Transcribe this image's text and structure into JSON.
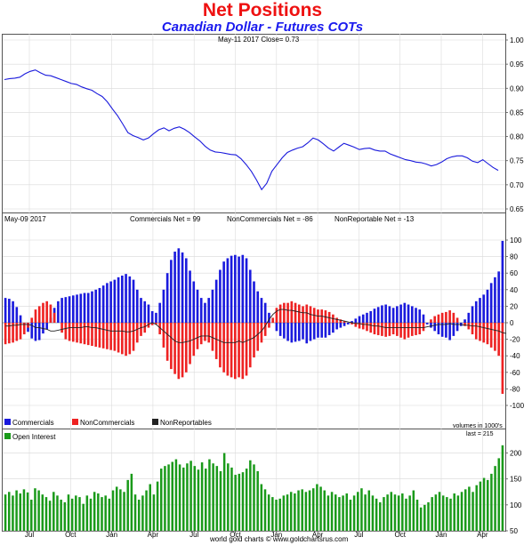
{
  "header": {
    "title": "Net Positions",
    "subtitle": "Canadian Dollar - Futures COTs"
  },
  "footer": {
    "credit": "world gold charts © www.goldchartsrus.com"
  },
  "chart_data": [
    {
      "type": "line",
      "panel": "price",
      "info": "May-11  2017  Close= 0.73",
      "ylim": [
        0.65,
        1.0
      ],
      "yticks": [
        0.65,
        0.7,
        0.75,
        0.8,
        0.85,
        0.9,
        0.95,
        1.0
      ],
      "ytick_labels": [
        "0.65",
        "0.70",
        "0.75",
        "0.80",
        "0.85",
        "0.90",
        "0.95",
        "1.00"
      ],
      "color": "#1a1adc",
      "values": [
        0.918,
        0.92,
        0.921,
        0.923,
        0.93,
        0.935,
        0.938,
        0.932,
        0.927,
        0.926,
        0.922,
        0.918,
        0.914,
        0.91,
        0.908,
        0.903,
        0.899,
        0.896,
        0.889,
        0.883,
        0.872,
        0.857,
        0.843,
        0.826,
        0.808,
        0.802,
        0.798,
        0.793,
        0.797,
        0.806,
        0.814,
        0.818,
        0.812,
        0.817,
        0.82,
        0.815,
        0.808,
        0.799,
        0.791,
        0.78,
        0.772,
        0.768,
        0.767,
        0.765,
        0.763,
        0.762,
        0.754,
        0.742,
        0.728,
        0.71,
        0.69,
        0.703,
        0.728,
        0.742,
        0.756,
        0.767,
        0.772,
        0.776,
        0.779,
        0.787,
        0.797,
        0.793,
        0.785,
        0.776,
        0.77,
        0.778,
        0.786,
        0.782,
        0.778,
        0.773,
        0.775,
        0.776,
        0.772,
        0.77,
        0.77,
        0.764,
        0.76,
        0.756,
        0.752,
        0.75,
        0.747,
        0.746,
        0.743,
        0.739,
        0.742,
        0.747,
        0.754,
        0.758,
        0.76,
        0.76,
        0.756,
        0.749,
        0.746,
        0.752,
        0.744,
        0.736,
        0.73
      ]
    },
    {
      "type": "bar",
      "panel": "net_positions",
      "info_date": "May-09  2017",
      "info_labels": [
        "Commercials Net = 99",
        "NonCommercials Net = -86",
        "NonReportable Net = -13"
      ],
      "ylim": [
        -100,
        100
      ],
      "yticks": [
        -100,
        -80,
        -60,
        -40,
        -20,
        0,
        20,
        40,
        60,
        80,
        100
      ],
      "ytick_labels": [
        "-100",
        "-80",
        "-60",
        "-40",
        "-20",
        "0",
        "20",
        "40",
        "60",
        "80",
        "100"
      ],
      "unit_note": "volumes in 1000's",
      "legend": [
        "Commercials",
        "NonCommercials",
        "NonReportables"
      ],
      "colors": {
        "commercials": "#1a1add",
        "noncommercials": "#ee2222",
        "nonreportables": "#222222"
      },
      "series": [
        {
          "name": "Commercials",
          "values": [
            30,
            29,
            26,
            19,
            9,
            -2,
            -11,
            -19,
            -22,
            -21,
            -13,
            -8,
            6,
            18,
            26,
            30,
            31,
            32,
            33,
            34,
            35,
            36,
            36,
            38,
            40,
            42,
            45,
            48,
            50,
            52,
            55,
            57,
            59,
            56,
            52,
            40,
            30,
            26,
            22,
            14,
            12,
            24,
            40,
            60,
            76,
            86,
            90,
            85,
            78,
            63,
            50,
            40,
            30,
            24,
            30,
            40,
            52,
            64,
            74,
            78,
            81,
            82,
            80,
            82,
            78,
            64,
            50,
            38,
            30,
            24,
            12,
            0,
            -10,
            -16,
            -19,
            -22,
            -24,
            -23,
            -22,
            -20,
            -25,
            -22,
            -20,
            -18,
            -18,
            -18,
            -15,
            -12,
            -8,
            -6,
            -4,
            -2,
            2,
            5,
            8,
            10,
            12,
            14,
            17,
            19,
            21,
            22,
            20,
            18,
            20,
            22,
            24,
            22,
            20,
            18,
            16,
            10,
            -2,
            -6,
            -10,
            -14,
            -17,
            -18,
            -21,
            -16,
            -10,
            -4,
            4,
            12,
            20,
            26,
            30,
            34,
            40,
            48,
            55,
            62,
            99
          ]
        },
        {
          "name": "NonCommercials",
          "values": [
            -26,
            -25,
            -24,
            -22,
            -20,
            -14,
            -6,
            6,
            16,
            20,
            24,
            26,
            22,
            12,
            0,
            -12,
            -20,
            -22,
            -23,
            -24,
            -25,
            -26,
            -27,
            -28,
            -29,
            -30,
            -31,
            -32,
            -33,
            -34,
            -36,
            -38,
            -40,
            -38,
            -34,
            -24,
            -16,
            -12,
            -6,
            -3,
            -2,
            -14,
            -30,
            -46,
            -56,
            -62,
            -68,
            -66,
            -60,
            -50,
            -40,
            -32,
            -26,
            -22,
            -24,
            -34,
            -44,
            -54,
            -60,
            -64,
            -66,
            -68,
            -66,
            -68,
            -64,
            -54,
            -42,
            -34,
            -24,
            -16,
            -6,
            6,
            18,
            22,
            24,
            24,
            26,
            24,
            22,
            20,
            22,
            20,
            18,
            16,
            16,
            15,
            13,
            10,
            6,
            4,
            2,
            0,
            -2,
            -5,
            -7,
            -8,
            -10,
            -12,
            -14,
            -15,
            -16,
            -17,
            -16,
            -14,
            -16,
            -18,
            -20,
            -18,
            -16,
            -15,
            -14,
            -10,
            0,
            4,
            8,
            10,
            12,
            13,
            15,
            12,
            6,
            0,
            -4,
            -8,
            -14,
            -20,
            -22,
            -24,
            -26,
            -30,
            -34,
            -40,
            -86
          ]
        },
        {
          "name": "NonReportables",
          "values": [
            -4,
            -4,
            -3,
            -3,
            -2,
            -2,
            -2,
            -3,
            -6,
            -6,
            -7,
            -8,
            -10,
            -10,
            -9,
            -8,
            -7,
            -6,
            -6,
            -6,
            -6,
            -5,
            -5,
            -6,
            -6,
            -7,
            -8,
            -9,
            -10,
            -10,
            -10,
            -10,
            -11,
            -11,
            -10,
            -8,
            -6,
            -5,
            -2,
            0,
            -2,
            -6,
            -10,
            -14,
            -18,
            -22,
            -24,
            -24,
            -23,
            -22,
            -20,
            -18,
            -16,
            -16,
            -16,
            -18,
            -20,
            -22,
            -24,
            -24,
            -24,
            -24,
            -22,
            -24,
            -22,
            -20,
            -18,
            -14,
            -10,
            -4,
            4,
            10,
            14,
            16,
            16,
            15,
            15,
            14,
            13,
            12,
            12,
            10,
            9,
            8,
            8,
            7,
            6,
            5,
            4,
            3,
            2,
            1,
            0,
            -1,
            -1,
            -2,
            -2,
            -3,
            -4,
            -4,
            -5,
            -6,
            -6,
            -6,
            -6,
            -6,
            -6,
            -6,
            -6,
            -6,
            -6,
            -6,
            -5,
            -4,
            -3,
            -2,
            -2,
            -2,
            -1,
            -2,
            -2,
            -2,
            -3,
            -3,
            -4,
            -4,
            -5,
            -6,
            -7,
            -8,
            -9,
            -10,
            -12,
            -13
          ]
        }
      ]
    },
    {
      "type": "bar",
      "panel": "open_interest",
      "legend": [
        "Open Interest"
      ],
      "last_label": "last = 215",
      "ylim": [
        50,
        225
      ],
      "yticks": [
        50,
        100,
        150,
        200
      ],
      "ytick_labels": [
        "50",
        "100",
        "150",
        "200"
      ],
      "color": "#1a9a1a",
      "series": [
        {
          "name": "Open Interest",
          "values": [
            120,
            125,
            118,
            128,
            122,
            130,
            124,
            110,
            132,
            128,
            120,
            115,
            108,
            125,
            118,
            110,
            105,
            120,
            112,
            118,
            115,
            102,
            118,
            112,
            125,
            122,
            115,
            118,
            112,
            128,
            135,
            130,
            125,
            148,
            160,
            120,
            110,
            118,
            128,
            140,
            120,
            145,
            170,
            175,
            178,
            183,
            188,
            178,
            172,
            180,
            185,
            175,
            168,
            182,
            170,
            188,
            180,
            175,
            165,
            200,
            180,
            172,
            158,
            160,
            163,
            170,
            186,
            178,
            165,
            140,
            130,
            120,
            115,
            110,
            112,
            118,
            120,
            125,
            122,
            128,
            130,
            125,
            128,
            132,
            140,
            135,
            128,
            118,
            125,
            120,
            115,
            118,
            122,
            110,
            118,
            125,
            132,
            120,
            128,
            118,
            112,
            105,
            115,
            120,
            125,
            120,
            118,
            122,
            112,
            118,
            128,
            110,
            95,
            100,
            105,
            115,
            120,
            125,
            118,
            115,
            112,
            122,
            118,
            125,
            130,
            135,
            125,
            138,
            145,
            152,
            148,
            160,
            175,
            190,
            215
          ]
        }
      ],
      "x_ticks": [
        "Jul",
        "Oct",
        "Jan",
        "Apr",
        "Jul",
        "Oct",
        "Jan",
        "Apr",
        "Jul",
        "Oct",
        "Jan",
        "Apr"
      ]
    }
  ]
}
